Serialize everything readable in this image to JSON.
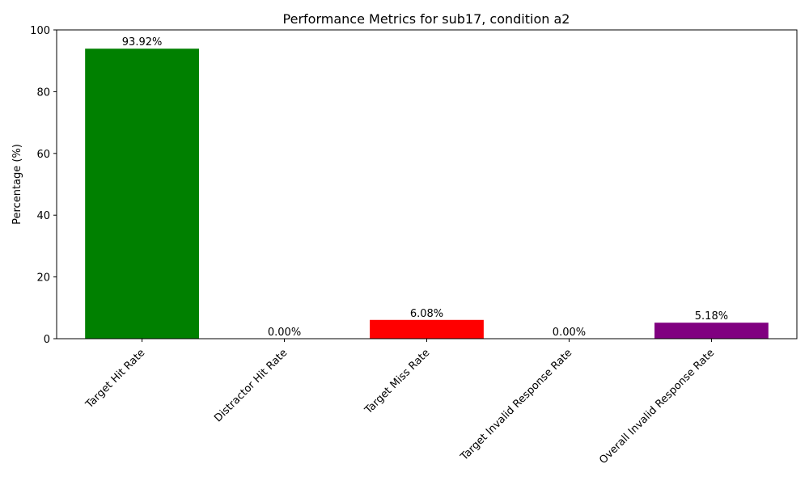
{
  "chart_data": {
    "type": "bar",
    "title": "Performance Metrics for sub17, condition a2",
    "xlabel": "",
    "ylabel": "Percentage (%)",
    "ylim": [
      0,
      100
    ],
    "yticks": [
      0,
      20,
      40,
      60,
      80,
      100
    ],
    "categories": [
      "Target Hit Rate",
      "Distractor Hit Rate",
      "Target Miss Rate",
      "Target Invalid Response Rate",
      "Overall Invalid Response Rate"
    ],
    "values": [
      93.92,
      0.0,
      6.08,
      0.0,
      5.18
    ],
    "value_labels": [
      "93.92%",
      "0.00%",
      "6.08%",
      "0.00%",
      "5.18%"
    ],
    "colors": [
      "#008000",
      "#ff0000",
      "#ff0000",
      "#ffa500",
      "#800080"
    ],
    "grid": false,
    "legend": "none",
    "xtick_rotation": 45
  }
}
